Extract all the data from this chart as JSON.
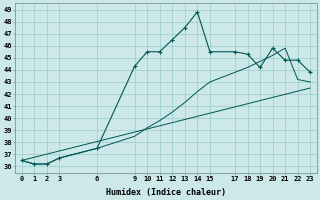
{
  "xlabel": "Humidex (Indice chaleur)",
  "xlim": [
    -0.5,
    23.5
  ],
  "ylim": [
    35.5,
    49.5
  ],
  "xticks": [
    0,
    1,
    2,
    3,
    6,
    9,
    10,
    11,
    12,
    13,
    14,
    15,
    17,
    18,
    19,
    20,
    21,
    22,
    23
  ],
  "yticks": [
    36,
    37,
    38,
    39,
    40,
    41,
    42,
    43,
    44,
    45,
    46,
    47,
    48,
    49
  ],
  "bg_color": "#cce8e8",
  "grid_color": "#99cccc",
  "line_color": "#005555",
  "line1_x": [
    0,
    1,
    2,
    3,
    6,
    9,
    10,
    11,
    12,
    13,
    14,
    15,
    17,
    18,
    19,
    20,
    21,
    22,
    23
  ],
  "line1_y": [
    36.5,
    36.2,
    36.2,
    36.7,
    37.5,
    44.3,
    45.5,
    45.5,
    46.5,
    47.5,
    48.8,
    45.5,
    45.5,
    45.3,
    44.2,
    45.8,
    44.8,
    44.8,
    43.8
  ],
  "line2_x": [
    0,
    1,
    2,
    3,
    6,
    9,
    10,
    11,
    12,
    13,
    14,
    15,
    17,
    18,
    19,
    20,
    21,
    22,
    23
  ],
  "line2_y": [
    36.5,
    36.2,
    36.2,
    36.7,
    37.5,
    38.5,
    39.2,
    39.8,
    40.5,
    41.3,
    42.2,
    43.0,
    43.8,
    44.2,
    44.7,
    45.2,
    45.8,
    43.2,
    43.0
  ],
  "line3_x": [
    0,
    23
  ],
  "line3_y": [
    36.5,
    42.5
  ]
}
